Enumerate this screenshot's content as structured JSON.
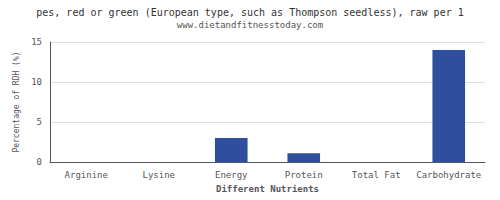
{
  "chart_data": {
    "type": "bar",
    "title": "pes, red or green (European type, such as Thompson seedless), raw per 1",
    "subtitle": "www.dietandfitnesstoday.com",
    "xlabel": "Different Nutrients",
    "ylabel": "Percentage of RDH (%)",
    "categories": [
      "Arginine",
      "Lysine",
      "Energy",
      "Protein",
      "Total Fat",
      "Carbohydrate"
    ],
    "values": [
      0.0,
      0.0,
      3.0,
      1.1,
      0.0,
      14.0
    ],
    "color": "#2e4f9e",
    "ylim": [
      0,
      15
    ],
    "yticks": [
      0,
      5,
      10,
      15
    ],
    "grid": true
  }
}
